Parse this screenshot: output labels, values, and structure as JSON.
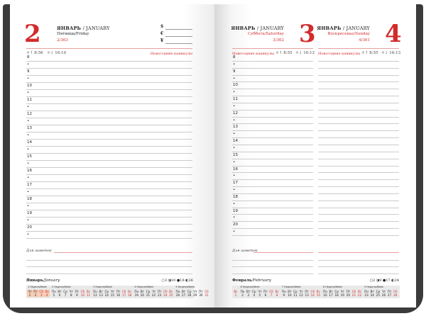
{
  "left_page": {
    "day_number": "2",
    "month": "ЯНВАРЬ",
    "month_en": "/ JANUARY",
    "weekday": "Пятница/Friday",
    "day_of_year": "2/363",
    "currencies": [
      "$",
      "€",
      "¥"
    ],
    "sunrise": "8:56",
    "sunset": "16:10",
    "holiday": "Новогодние каникулы",
    "notes_label": "Для заметок",
    "calendar": {
      "month": "Январь",
      "month_en": "/January",
      "moon": "○3 ◑10 ●18 ◐26",
      "weeks": [
        {
          "label": "1 Неделя/Week",
          "days": [
            [
              "Чт",
              "1"
            ],
            [
              "Пт",
              "2"
            ],
            [
              "Сб",
              "3"
            ],
            [
              "Вс",
              "4"
            ]
          ],
          "highlight": true
        },
        {
          "label": "2 Неделя/Week",
          "days": [
            [
              "Пн",
              "5"
            ],
            [
              "Вт",
              "6"
            ],
            [
              "Ср",
              "7"
            ],
            [
              "Чт",
              "8"
            ],
            [
              "Пт",
              "9"
            ],
            [
              "Сб",
              "10"
            ],
            [
              "Вс",
              "11"
            ]
          ]
        },
        {
          "label": "3 Неделя/Week",
          "days": [
            [
              "Пн",
              "12"
            ],
            [
              "Вт",
              "13"
            ],
            [
              "Ср",
              "14"
            ],
            [
              "Чт",
              "15"
            ],
            [
              "Пт",
              "16"
            ],
            [
              "Сб",
              "17"
            ],
            [
              "Вс",
              "18"
            ]
          ]
        },
        {
          "label": "4 Неделя/Week",
          "days": [
            [
              "Пн",
              "19"
            ],
            [
              "Вт",
              "20"
            ],
            [
              "Ср",
              "21"
            ],
            [
              "Чт",
              "22"
            ],
            [
              "Пт",
              "23"
            ],
            [
              "Сб",
              "24"
            ],
            [
              "Вс",
              "25"
            ]
          ]
        },
        {
          "label": "5 Неделя/Week",
          "days": [
            [
              "Пн",
              "26"
            ],
            [
              "Вт",
              "27"
            ],
            [
              "Ср",
              "28"
            ],
            [
              "Чт",
              "29"
            ],
            [
              "Пт",
              "30"
            ],
            [
              "Сб",
              "31"
            ]
          ]
        }
      ]
    }
  },
  "right_page": {
    "days": [
      {
        "day_number": "3",
        "month": "ЯНВАРЬ",
        "month_en": "/ JANUARY",
        "weekday": "Суббота/Saturday",
        "day_of_year": "3/362",
        "sunrise": "8:55",
        "sunset": "16:12",
        "holiday": "Новогодние каникулы"
      },
      {
        "day_number": "4",
        "month": "ЯНВАРЬ",
        "month_en": "/ JANUARY",
        "weekday": "Воскресенье/Sunday",
        "day_of_year": "4/361",
        "sunrise": "8:55",
        "sunset": "16:13",
        "holiday": "Новогодние каникулы"
      }
    ],
    "notes_label": "Для заметок",
    "calendar": {
      "month": "Февраль",
      "month_en": "/February",
      "moon": "○2 ◑9 ●17 ◐24",
      "weeks": [
        {
          "label": "",
          "days": [
            [
              "Вс",
              "1"
            ]
          ]
        },
        {
          "label": "6 Неделя/Week",
          "days": [
            [
              "Пн",
              "2"
            ],
            [
              "Вт",
              "3"
            ],
            [
              "Ср",
              "4"
            ],
            [
              "Чт",
              "5"
            ],
            [
              "Пт",
              "6"
            ],
            [
              "Сб",
              "7"
            ],
            [
              "Вс",
              "8"
            ]
          ]
        },
        {
          "label": "7 Неделя/Week",
          "days": [
            [
              "Пн",
              "9"
            ],
            [
              "Вт",
              "10"
            ],
            [
              "Ср",
              "11"
            ],
            [
              "Чт",
              "12"
            ],
            [
              "Пт",
              "13"
            ],
            [
              "Сб",
              "14"
            ],
            [
              "Вс",
              "15"
            ]
          ]
        },
        {
          "label": "8 Неделя/Week",
          "days": [
            [
              "Пн",
              "16"
            ],
            [
              "Вт",
              "17"
            ],
            [
              "Ср",
              "18"
            ],
            [
              "Чт",
              "19"
            ],
            [
              "Пт",
              "20"
            ],
            [
              "Сб",
              "21"
            ],
            [
              "Вс",
              "22"
            ]
          ]
        },
        {
          "label": "9 Неделя/Week",
          "days": [
            [
              "Пн",
              "23"
            ],
            [
              "Вт",
              "24"
            ],
            [
              "Ср",
              "25"
            ],
            [
              "Чт",
              "26"
            ],
            [
              "Пт",
              "27"
            ],
            [
              "Сб",
              "28"
            ]
          ]
        }
      ]
    }
  },
  "hours": [
    "8",
    "9",
    "10",
    "11",
    "12",
    "13",
    "14",
    "15",
    "16",
    "17",
    "18",
    "19",
    "20"
  ],
  "half_hour_mark": "•",
  "colors": {
    "accent": "#d22b2b",
    "highlight": "#f6cdb6",
    "cover": "#3b3b3b"
  }
}
